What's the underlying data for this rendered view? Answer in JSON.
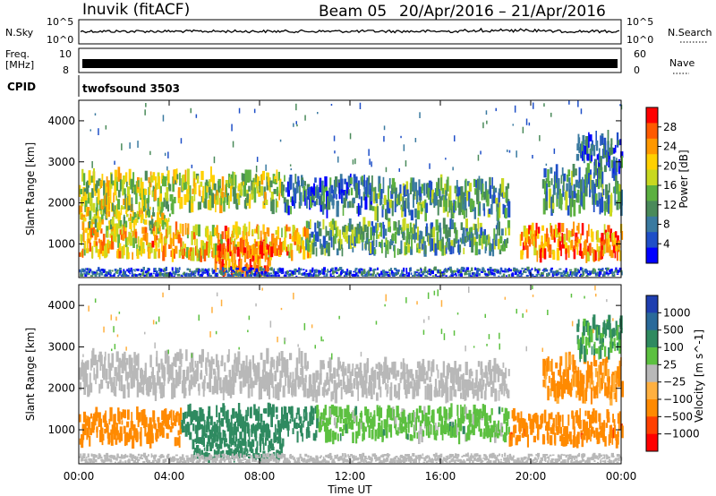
{
  "header": {
    "station": "Inuvik (fitACF)",
    "beam": "Beam 05",
    "date_range": "20/Apr/2016 – 21/Apr/2016"
  },
  "strips": {
    "nsky": {
      "label": "N.Sky",
      "top_tick": "10^5",
      "bottom_tick": "10^0",
      "right_label": "N.Search",
      "right_top_tick": "10^5",
      "right_bottom_tick": "10^0"
    },
    "freq": {
      "label_line1": "Freq.",
      "label_line2": "[MHz]",
      "left_top_tick": "10",
      "left_bottom_tick": "8",
      "right_label": "Nave",
      "right_top_tick": "60",
      "right_bottom_tick": "0"
    },
    "cpid": {
      "label": "CPID",
      "program": "twofsound 3503"
    }
  },
  "chart_data": [
    {
      "type": "heatmap",
      "title": "Power",
      "ylabel": "Slant Range [km]",
      "xlabel": "Time UT",
      "x_ticks": [
        "00:00",
        "04:00",
        "08:00",
        "12:00",
        "16:00",
        "20:00",
        "00:00"
      ],
      "x_range_hours": [
        0,
        24
      ],
      "y_ticks": [
        1000,
        2000,
        3000,
        4000
      ],
      "ylim": [
        180,
        4500
      ],
      "colorbar": {
        "label": "Power [dB]",
        "ticks": [
          4,
          8,
          12,
          16,
          20,
          24,
          28
        ],
        "range": [
          0,
          32
        ],
        "colors": [
          "#0000ff",
          "#1f4fc8",
          "#3a7aa0",
          "#4a8a5a",
          "#5cb040",
          "#c8d820",
          "#ffd000",
          "#ff9800",
          "#ff5a00",
          "#ff0000"
        ]
      },
      "bands": [
        {
          "t0": 0.0,
          "t1": 10.2,
          "r0": 700,
          "r1": 1400,
          "v": 22
        },
        {
          "t0": 6.0,
          "t1": 8.5,
          "r0": 300,
          "r1": 1000,
          "v": 26
        },
        {
          "t0": 0.0,
          "t1": 4.0,
          "r0": 1400,
          "r1": 1900,
          "v": 18
        },
        {
          "t0": 0.0,
          "t1": 9.0,
          "r0": 1900,
          "r1": 2700,
          "v": 17
        },
        {
          "t0": 9.0,
          "t1": 13.0,
          "r0": 1800,
          "r1": 2600,
          "v": 8
        },
        {
          "t0": 10.0,
          "t1": 19.0,
          "r0": 800,
          "r1": 1500,
          "v": 12
        },
        {
          "t0": 13.0,
          "t1": 19.0,
          "r0": 1700,
          "r1": 2500,
          "v": 11
        },
        {
          "t0": 19.5,
          "t1": 24.0,
          "r0": 700,
          "r1": 1400,
          "v": 24
        },
        {
          "t0": 20.5,
          "t1": 24.0,
          "r0": 1800,
          "r1": 2800,
          "v": 10
        },
        {
          "t0": 22.0,
          "t1": 24.0,
          "r0": 2800,
          "r1": 3600,
          "v": 7
        },
        {
          "t0": 0.0,
          "t1": 24.0,
          "r0": 180,
          "r1": 400,
          "v": 6
        }
      ]
    },
    {
      "type": "heatmap",
      "title": "Velocity",
      "ylabel": "Slant Range [km]",
      "xlabel": "Time UT",
      "x_ticks": [
        "00:00",
        "04:00",
        "08:00",
        "12:00",
        "16:00",
        "20:00",
        "00:00"
      ],
      "x_range_hours": [
        0,
        24
      ],
      "y_ticks": [
        1000,
        2000,
        3000,
        4000
      ],
      "ylim": [
        180,
        4500
      ],
      "colorbar": {
        "label": "Velocity [m s^-1]",
        "ticks": [
          "1000",
          "500",
          "100",
          "25",
          "−25",
          "−100",
          "−500",
          "−1000"
        ],
        "colors": [
          "#1f3fb0",
          "#2a6a9a",
          "#2f8a60",
          "#5cc040",
          "#b8b8b8",
          "#ffb040",
          "#ff8a00",
          "#ff4000",
          "#ff0000"
        ]
      },
      "bands": [
        {
          "t0": 0.0,
          "t1": 10.0,
          "r0": 1900,
          "r1": 2800,
          "v": 0
        },
        {
          "t0": 10.0,
          "t1": 19.0,
          "r0": 1800,
          "r1": 2600,
          "v": 0
        },
        {
          "t0": 0.0,
          "t1": 4.5,
          "r0": 700,
          "r1": 1400,
          "v": -300
        },
        {
          "t0": 4.5,
          "t1": 10.5,
          "r0": 800,
          "r1": 1500,
          "v": 300
        },
        {
          "t0": 5.0,
          "t1": 9.0,
          "r0": 300,
          "r1": 800,
          "v": 200
        },
        {
          "t0": 10.5,
          "t1": 19.0,
          "r0": 800,
          "r1": 1500,
          "v": 60
        },
        {
          "t0": 19.0,
          "t1": 24.0,
          "r0": 700,
          "r1": 1400,
          "v": -350
        },
        {
          "t0": 20.5,
          "t1": 24.0,
          "r0": 1800,
          "r1": 2700,
          "v": -150
        },
        {
          "t0": 22.0,
          "t1": 24.0,
          "r0": 2800,
          "r1": 3600,
          "v": 120
        },
        {
          "t0": 0.0,
          "t1": 24.0,
          "r0": 180,
          "r1": 400,
          "v": 0
        }
      ]
    }
  ]
}
